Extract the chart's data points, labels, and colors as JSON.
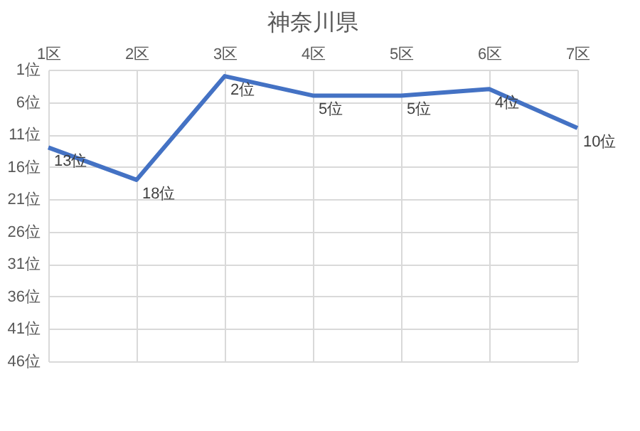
{
  "chart_data": {
    "type": "line",
    "title": "神奈川県",
    "categories": [
      "1区",
      "2区",
      "3区",
      "4区",
      "5区",
      "6区",
      "7区"
    ],
    "series": [
      {
        "color": "#4472c4",
        "values": [
          13,
          18,
          2,
          5,
          5,
          4,
          10
        ],
        "value_labels": [
          "13位",
          "18位",
          "2位",
          "5位",
          "5位",
          "4位",
          "10位"
        ]
      }
    ],
    "ylim": [
      46,
      1
    ],
    "yticks": [
      {
        "value": 1,
        "label": "1位"
      },
      {
        "value": 6,
        "label": "6位"
      },
      {
        "value": 11,
        "label": "11位"
      },
      {
        "value": 16,
        "label": "16位"
      },
      {
        "value": 21,
        "label": "21位"
      },
      {
        "value": 26,
        "label": "26位"
      },
      {
        "value": 31,
        "label": "31位"
      },
      {
        "value": 36,
        "label": "36位"
      },
      {
        "value": 41,
        "label": "41位"
      },
      {
        "value": 46,
        "label": "46位"
      }
    ],
    "grid": true,
    "marker": "none",
    "line_style": "solid"
  }
}
